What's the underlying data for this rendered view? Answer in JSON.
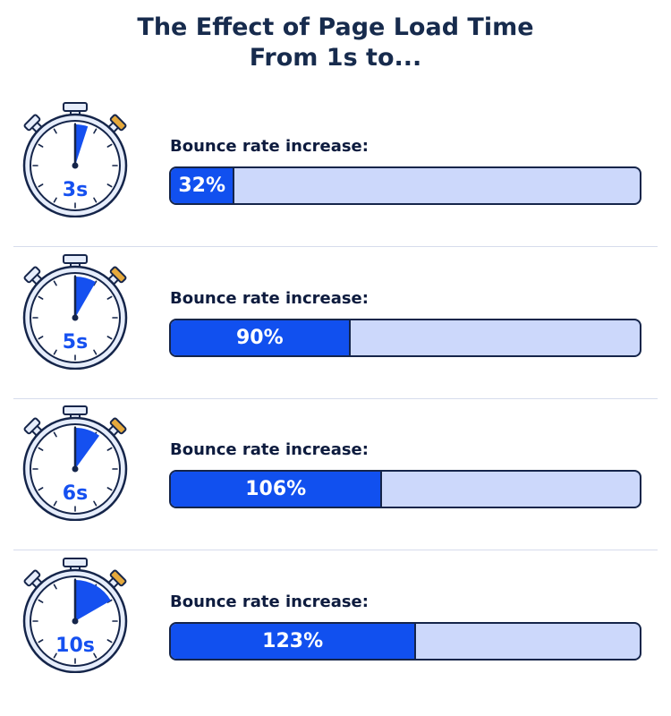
{
  "title_lines": [
    "The Effect of Page Load Time",
    "From 1s to..."
  ],
  "colors": {
    "title": "#172b4d",
    "fill": "#1150ef",
    "track": "#ccd8fb",
    "outline": "#15254a",
    "face": "#e6edfb",
    "button": "#e5a93c",
    "wedge": "#1550f0"
  },
  "chart_data": {
    "type": "bar",
    "title": "The Effect of Page Load Time From 1s to...",
    "categories": [
      "3s",
      "5s",
      "6s",
      "10s"
    ],
    "bar_label": "Bounce rate increase:",
    "values": [
      32,
      90,
      106,
      123
    ],
    "value_labels": [
      "32%",
      "90%",
      "106%",
      "123%"
    ],
    "unit": "%",
    "xlim": [
      0,
      235
    ],
    "orientation": "horizontal",
    "grid": false,
    "legend": "none"
  }
}
